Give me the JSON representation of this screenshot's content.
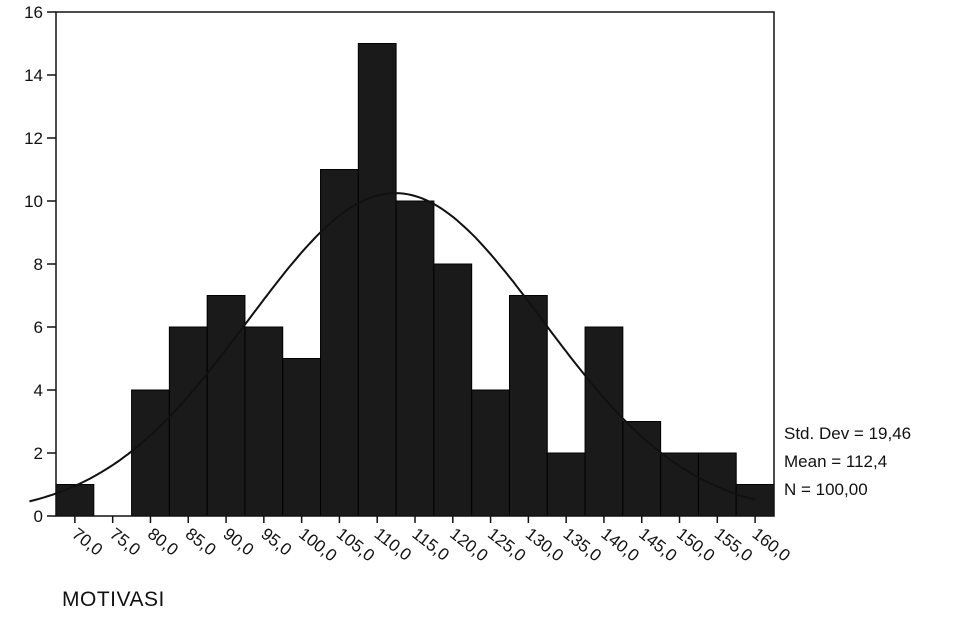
{
  "chart_data": {
    "type": "bar",
    "variable": "MOTIVASI",
    "bin_edges": [
      67.5,
      72.5,
      77.5,
      82.5,
      87.5,
      92.5,
      97.5,
      102.5,
      107.5,
      112.5,
      117.5,
      122.5,
      127.5,
      132.5,
      137.5,
      142.5,
      147.5,
      152.5,
      157.5,
      162.5
    ],
    "values": [
      1,
      0,
      4,
      6,
      7,
      6,
      5,
      11,
      15,
      10,
      8,
      4,
      7,
      2,
      6,
      3,
      2,
      2,
      1
    ],
    "x_tick_labels": [
      "70,0",
      "75,0",
      "80,0",
      "85,0",
      "90,0",
      "95,0",
      "100,0",
      "105,0",
      "110,0",
      "115,0",
      "120,0",
      "125,0",
      "130,0",
      "135,0",
      "140,0",
      "145,0",
      "150,0",
      "155,0",
      "160,0"
    ],
    "x_tick_values": [
      70,
      75,
      80,
      85,
      90,
      95,
      100,
      105,
      110,
      115,
      120,
      125,
      130,
      135,
      140,
      145,
      150,
      155,
      160
    ],
    "y_ticks": [
      "0",
      "2",
      "4",
      "6",
      "8",
      "10",
      "12",
      "14",
      "16"
    ],
    "y_tick_values": [
      0,
      2,
      4,
      6,
      8,
      10,
      12,
      14,
      16
    ],
    "ylim": [
      0,
      16
    ],
    "xlabel": "MOTIVASI",
    "ylabel": "",
    "normal_curve": {
      "mean": 112.4,
      "std_dev": 19.46,
      "n": 100,
      "bin_width": 5
    },
    "stats": {
      "std_dev": "Std. Dev = 19,46",
      "mean": "Mean = 112,4",
      "n": "N = 100,00"
    },
    "colors": {
      "bar": "#1a1a1a",
      "axis": "#111111",
      "curve": "#111111"
    }
  }
}
